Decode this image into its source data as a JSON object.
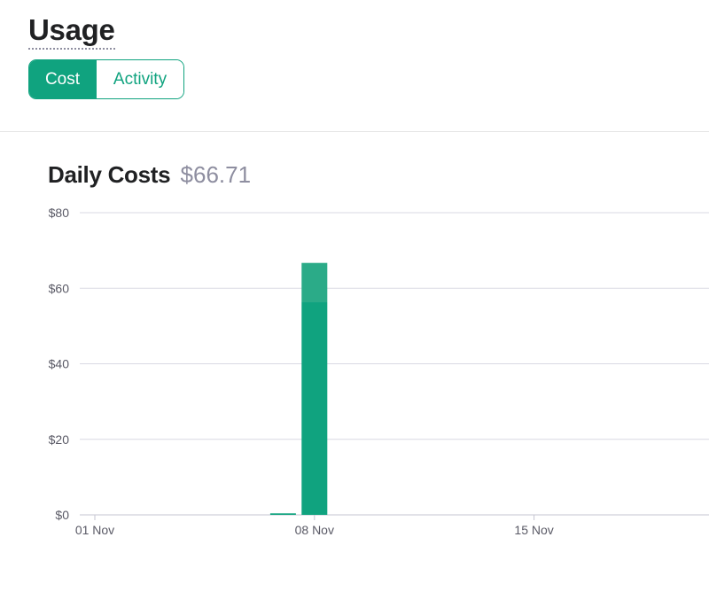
{
  "header": {
    "title": "Usage"
  },
  "tabs": [
    {
      "label": "Cost",
      "active": true
    },
    {
      "label": "Activity",
      "active": false
    }
  ],
  "chart": {
    "title": "Daily Costs",
    "total": "$66.71"
  },
  "colors": {
    "accent": "#10a37f",
    "accent_light": "#2bab88",
    "grid": "#d9d9e3",
    "muted_text": "#8e8ea0"
  },
  "chart_data": {
    "type": "bar",
    "stacked": true,
    "x_tick_labels": [
      "01 Nov",
      "08 Nov",
      "15 Nov"
    ],
    "y_tick_labels": [
      "$0",
      "$20",
      "$40",
      "$60",
      "$80"
    ],
    "ylim": [
      0,
      80
    ],
    "grid": true,
    "bars": [
      {
        "date": "07 Nov",
        "segments": [
          0.4
        ]
      },
      {
        "date": "08 Nov",
        "segments": [
          56.3,
          10.4
        ]
      }
    ]
  }
}
